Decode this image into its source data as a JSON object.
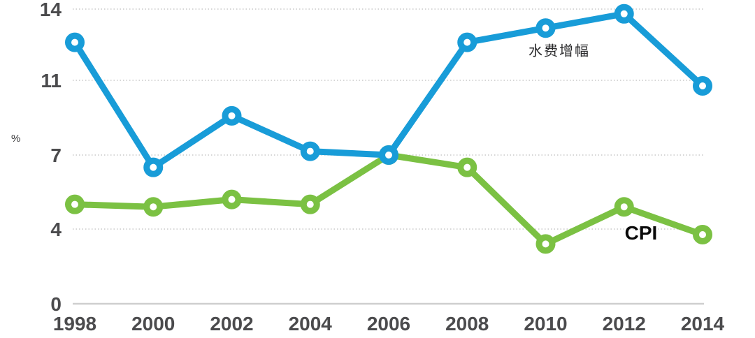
{
  "chart_data": {
    "type": "line",
    "title": "",
    "xlabel": "",
    "ylabel": "%",
    "x": [
      "1998",
      "2000",
      "2002",
      "2004",
      "2006",
      "2008",
      "2010",
      "2012",
      "2014"
    ],
    "series": [
      {
        "name": "水费增幅",
        "color": "#189cd8",
        "values": [
          12.6,
          6.5,
          9.1,
          7.2,
          7.0,
          12.6,
          13.2,
          13.8,
          10.7
        ]
      },
      {
        "name": "CPI",
        "color": "#7bc143",
        "values": [
          5.0,
          4.9,
          5.2,
          5.0,
          7.0,
          6.5,
          3.2,
          4.9,
          3.7
        ]
      }
    ],
    "yticks": [
      0,
      4,
      7,
      11,
      14
    ],
    "ylim": [
      0,
      14.5
    ],
    "grid": "horizontal-dotted",
    "legend_position": "inline-annotations",
    "annotations": [
      {
        "text": "水费增幅",
        "attached_series": "水费增幅",
        "color": "#2b2b2d"
      },
      {
        "text": "CPI",
        "attached_series": "CPI",
        "color": "#0a0a0a"
      }
    ],
    "axis_text_color": "#4b4b4d",
    "gridline_color": "#c8c8c8",
    "baseline_color": "#cfcfcf",
    "marker_fill": "#ffffff"
  }
}
